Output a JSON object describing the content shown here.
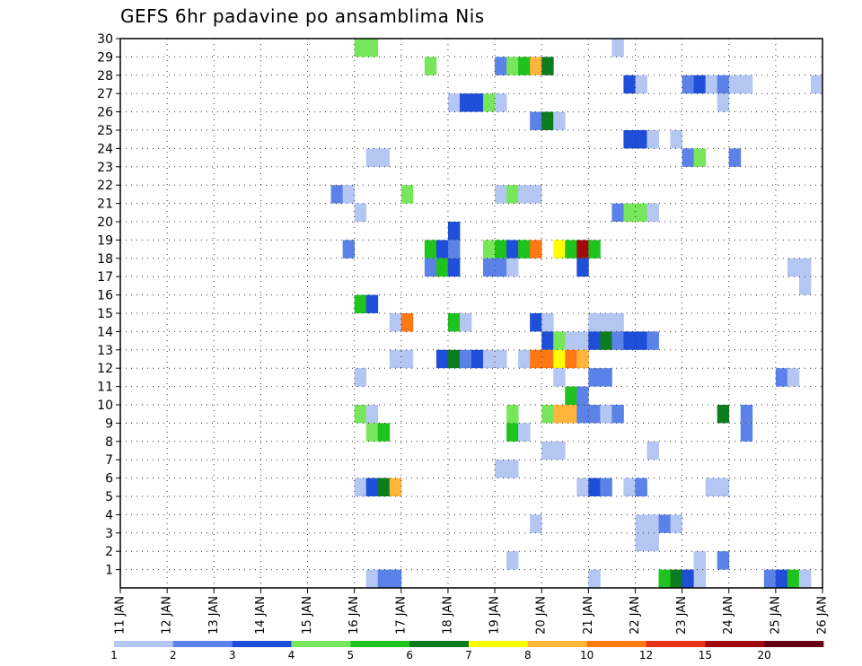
{
  "chart_data": {
    "type": "heatmap",
    "title": "GEFS 6hr padavine po ansamblima Nis",
    "xlabel": "",
    "ylabel": "",
    "x_tick_labels": [
      "11 JAN",
      "12 JAN",
      "13 JAN",
      "14 JAN",
      "15 JAN",
      "16 JAN",
      "17 JAN",
      "18 JAN",
      "19 JAN",
      "20 JAN",
      "21 JAN",
      "22 JAN",
      "23 JAN",
      "24 JAN",
      "25 JAN",
      "26 JAN"
    ],
    "x_range_days": [
      11,
      26
    ],
    "y_tick_labels": [
      "1",
      "2",
      "3",
      "4",
      "5",
      "6",
      "7",
      "8",
      "9",
      "10",
      "11",
      "12",
      "13",
      "14",
      "15",
      "16",
      "17",
      "18",
      "19",
      "20",
      "21",
      "22",
      "23",
      "24",
      "25",
      "26",
      "27",
      "28",
      "29",
      "30"
    ],
    "y_range": [
      0,
      30
    ],
    "grid": true,
    "colorbar": {
      "labels": [
        "1",
        "2",
        "3",
        "4",
        "5",
        "6",
        "7",
        "8",
        "10",
        "12",
        "15",
        "20"
      ],
      "colors": [
        "#b4c6f2",
        "#5a82e8",
        "#1f4fd8",
        "#78e65a",
        "#1ec31e",
        "#0c7d1e",
        "#ffff00",
        "#ffb43c",
        "#ff7814",
        "#e63214",
        "#a00a0a",
        "#640014"
      ]
    },
    "cells": [
      [
        30,
        15.75,
        0
      ],
      [
        30,
        16.0,
        6
      ],
      [
        30,
        16.25,
        8
      ],
      [
        30,
        16.5,
        0
      ],
      [
        30,
        19.5,
        0
      ],
      [
        30,
        25.75,
        0
      ],
      [
        29,
        16.0,
        3
      ],
      [
        29,
        16.25,
        3
      ],
      [
        29,
        21.5,
        0
      ],
      [
        28,
        17.5,
        3
      ],
      [
        28,
        19.0,
        1
      ],
      [
        28,
        19.25,
        3
      ],
      [
        28,
        19.5,
        4
      ],
      [
        28,
        19.75,
        7
      ],
      [
        28,
        20.0,
        5
      ],
      [
        27,
        21.75,
        2
      ],
      [
        27,
        22.0,
        0
      ],
      [
        27,
        23.0,
        1
      ],
      [
        27,
        23.25,
        2
      ],
      [
        27,
        23.5,
        0
      ],
      [
        27,
        23.75,
        1
      ],
      [
        27,
        24.0,
        0
      ],
      [
        27,
        24.25,
        0
      ],
      [
        27,
        25.75,
        0
      ],
      [
        26,
        18.0,
        0
      ],
      [
        26,
        18.25,
        2
      ],
      [
        26,
        18.5,
        2
      ],
      [
        26,
        18.75,
        3
      ],
      [
        26,
        19.0,
        0
      ],
      [
        26,
        23.75,
        0
      ],
      [
        25,
        19.75,
        1
      ],
      [
        25,
        20.0,
        5
      ],
      [
        25,
        20.25,
        0
      ],
      [
        24,
        21.75,
        2
      ],
      [
        24,
        22.0,
        2
      ],
      [
        24,
        22.25,
        0
      ],
      [
        24,
        22.75,
        0
      ],
      [
        23,
        16.25,
        0
      ],
      [
        23,
        16.5,
        0
      ],
      [
        23,
        23.0,
        1
      ],
      [
        23,
        23.25,
        3
      ],
      [
        23,
        24.0,
        1
      ],
      [
        21,
        15.5,
        1
      ],
      [
        21,
        15.75,
        0
      ],
      [
        21,
        17.0,
        3
      ],
      [
        21,
        19.0,
        0
      ],
      [
        21,
        19.25,
        3
      ],
      [
        21,
        19.5,
        0
      ],
      [
        21,
        19.75,
        0
      ],
      [
        20,
        16.0,
        0
      ],
      [
        20,
        21.5,
        1
      ],
      [
        20,
        21.75,
        3
      ],
      [
        20,
        22.0,
        3
      ],
      [
        20,
        22.25,
        0
      ],
      [
        19,
        18.0,
        2
      ],
      [
        18,
        15.75,
        1
      ],
      [
        18,
        17.5,
        4
      ],
      [
        18,
        17.75,
        2
      ],
      [
        18,
        18.0,
        1
      ],
      [
        18,
        18.75,
        3
      ],
      [
        18,
        19.0,
        4
      ],
      [
        18,
        19.25,
        2
      ],
      [
        18,
        19.5,
        4
      ],
      [
        18,
        19.75,
        8
      ],
      [
        18,
        20.25,
        6
      ],
      [
        18,
        20.5,
        4
      ],
      [
        18,
        20.75,
        10
      ],
      [
        18,
        21.0,
        4
      ],
      [
        17,
        17.5,
        1
      ],
      [
        17,
        17.75,
        4
      ],
      [
        17,
        18.0,
        2
      ],
      [
        17,
        18.75,
        1
      ],
      [
        17,
        19.0,
        1
      ],
      [
        17,
        19.25,
        0
      ],
      [
        17,
        20.75,
        2
      ],
      [
        17,
        25.25,
        0
      ],
      [
        17,
        25.5,
        0
      ],
      [
        16,
        25.5,
        0
      ],
      [
        15,
        16.0,
        4
      ],
      [
        15,
        16.25,
        2
      ],
      [
        14,
        16.75,
        0
      ],
      [
        14,
        17.0,
        8
      ],
      [
        14,
        18.0,
        4
      ],
      [
        14,
        18.25,
        0
      ],
      [
        14,
        19.75,
        2
      ],
      [
        14,
        20.0,
        0
      ],
      [
        14,
        21.0,
        0
      ],
      [
        14,
        21.25,
        0
      ],
      [
        14,
        21.5,
        0
      ],
      [
        13,
        20.0,
        2
      ],
      [
        13,
        20.25,
        3
      ],
      [
        13,
        20.5,
        0
      ],
      [
        13,
        20.75,
        0
      ],
      [
        13,
        21.0,
        2
      ],
      [
        13,
        21.25,
        5
      ],
      [
        13,
        21.5,
        1
      ],
      [
        13,
        21.75,
        2
      ],
      [
        13,
        22.0,
        2
      ],
      [
        13,
        22.25,
        1
      ],
      [
        12,
        16.75,
        0
      ],
      [
        12,
        17.0,
        0
      ],
      [
        12,
        17.75,
        2
      ],
      [
        12,
        18.0,
        5
      ],
      [
        12,
        18.25,
        1
      ],
      [
        12,
        18.5,
        2
      ],
      [
        12,
        18.75,
        0
      ],
      [
        12,
        19.0,
        0
      ],
      [
        12,
        19.5,
        0
      ],
      [
        12,
        19.75,
        8
      ],
      [
        12,
        20.0,
        8
      ],
      [
        12,
        20.25,
        6
      ],
      [
        12,
        20.5,
        8
      ],
      [
        12,
        20.75,
        7
      ],
      [
        11,
        16.0,
        0
      ],
      [
        11,
        20.25,
        0
      ],
      [
        11,
        21.0,
        1
      ],
      [
        11,
        21.25,
        1
      ],
      [
        11,
        25.0,
        1
      ],
      [
        11,
        25.25,
        0
      ],
      [
        10,
        20.5,
        4
      ],
      [
        10,
        20.75,
        1
      ],
      [
        9,
        16.0,
        3
      ],
      [
        9,
        16.25,
        0
      ],
      [
        9,
        19.25,
        3
      ],
      [
        9,
        20.0,
        3
      ],
      [
        9,
        20.25,
        7
      ],
      [
        9,
        20.5,
        7
      ],
      [
        9,
        20.75,
        1
      ],
      [
        9,
        21.0,
        1
      ],
      [
        9,
        21.25,
        0
      ],
      [
        9,
        21.5,
        1
      ],
      [
        9,
        23.75,
        5
      ],
      [
        9,
        24.25,
        1
      ],
      [
        8,
        16.25,
        3
      ],
      [
        8,
        16.5,
        4
      ],
      [
        8,
        19.25,
        4
      ],
      [
        8,
        19.5,
        0
      ],
      [
        8,
        24.25,
        1
      ],
      [
        7,
        20.0,
        0
      ],
      [
        7,
        20.25,
        0
      ],
      [
        7,
        22.25,
        0
      ],
      [
        6,
        19.0,
        0
      ],
      [
        6,
        19.25,
        0
      ],
      [
        5,
        16.0,
        0
      ],
      [
        5,
        16.25,
        2
      ],
      [
        5,
        16.5,
        5
      ],
      [
        5,
        16.75,
        7
      ],
      [
        5,
        20.75,
        0
      ],
      [
        5,
        21.0,
        2
      ],
      [
        5,
        21.25,
        1
      ],
      [
        5,
        21.75,
        0
      ],
      [
        5,
        22.0,
        1
      ],
      [
        5,
        23.5,
        0
      ],
      [
        5,
        23.75,
        0
      ],
      [
        3,
        19.75,
        0
      ],
      [
        3,
        22.0,
        0
      ],
      [
        3,
        22.25,
        0
      ],
      [
        3,
        22.5,
        1
      ],
      [
        3,
        22.75,
        0
      ],
      [
        2,
        22.0,
        0
      ],
      [
        2,
        22.25,
        0
      ],
      [
        1,
        19.25,
        0
      ],
      [
        1,
        23.25,
        0
      ],
      [
        1,
        23.75,
        1
      ],
      [
        0,
        16.25,
        0
      ],
      [
        0,
        16.5,
        1
      ],
      [
        0,
        16.75,
        1
      ],
      [
        0,
        21.0,
        0
      ],
      [
        0,
        22.5,
        4
      ],
      [
        0,
        22.75,
        5
      ],
      [
        0,
        23.0,
        2
      ],
      [
        0,
        23.25,
        0
      ],
      [
        0,
        24.75,
        1
      ],
      [
        0,
        25.0,
        2
      ],
      [
        0,
        25.25,
        4
      ],
      [
        0,
        25.5,
        0
      ],
      [
        -1,
        15.5,
        1
      ],
      [
        -1,
        15.75,
        2
      ],
      [
        -1,
        18.25,
        0
      ],
      [
        -1,
        18.5,
        0
      ],
      [
        -1,
        18.75,
        0
      ],
      [
        -1,
        19.0,
        3
      ],
      [
        -1,
        22.5,
        0
      ],
      [
        -1,
        22.75,
        0
      ],
      [
        -1,
        23.0,
        5
      ]
    ]
  }
}
